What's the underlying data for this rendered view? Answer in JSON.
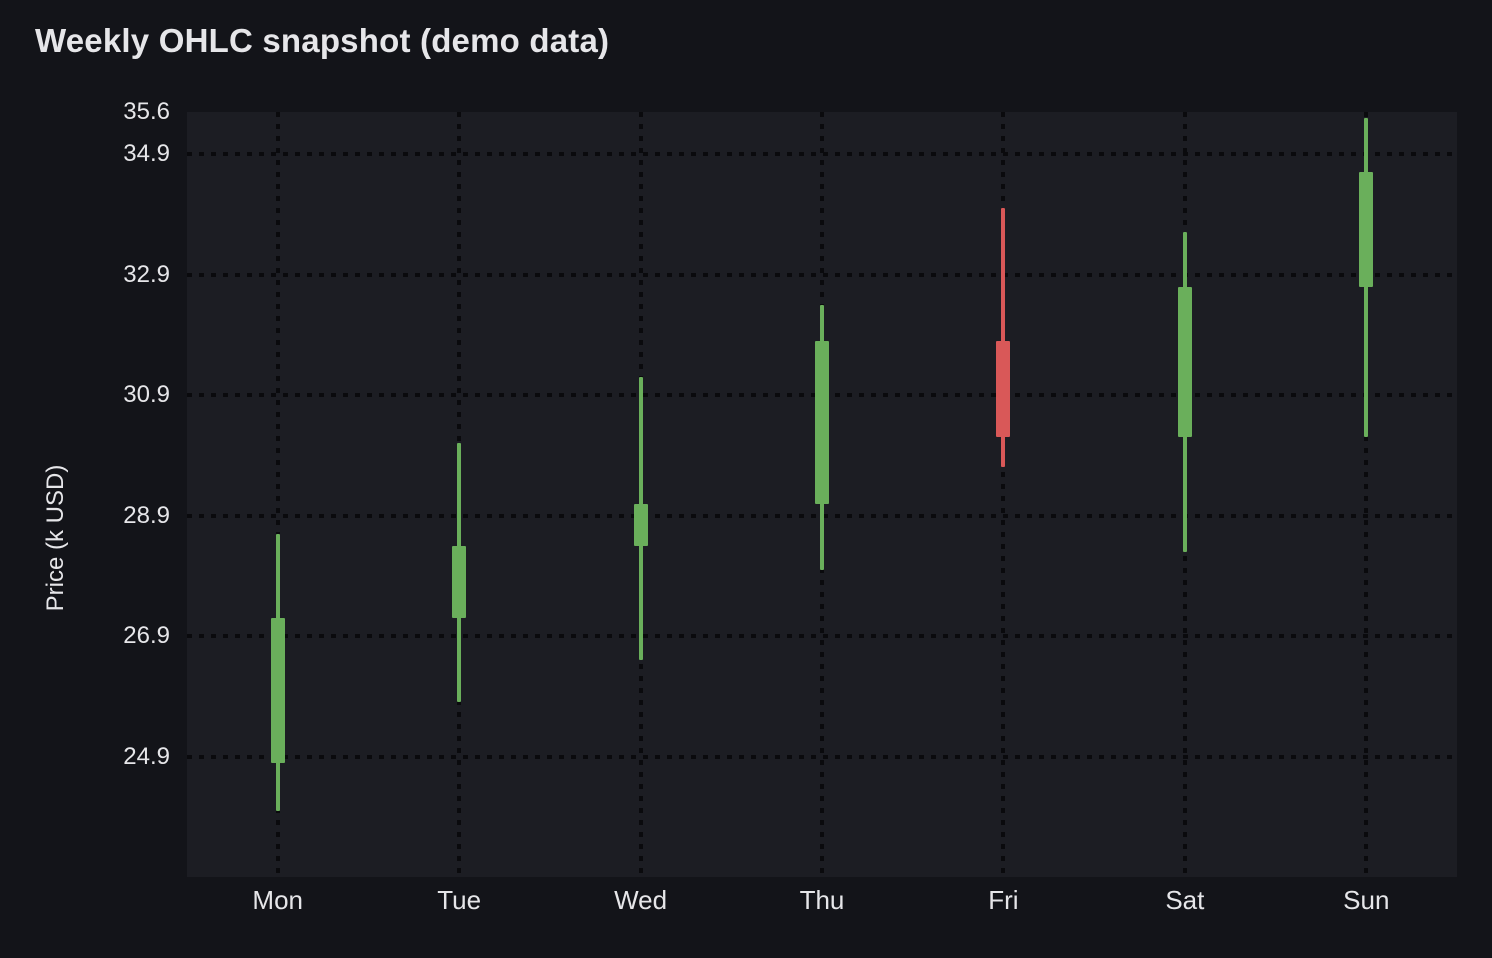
{
  "title": "Weekly OHLC snapshot (demo data)",
  "y_axis": {
    "label": "Price (k USD)",
    "ticks": [
      {
        "label": "35.6",
        "value": 35.6,
        "gridline": false
      },
      {
        "label": "34.9",
        "value": 34.9,
        "gridline": true
      },
      {
        "label": "32.9",
        "value": 32.9,
        "gridline": true
      },
      {
        "label": "30.9",
        "value": 30.9,
        "gridline": true
      },
      {
        "label": "28.9",
        "value": 28.9,
        "gridline": true
      },
      {
        "label": "26.9",
        "value": 26.9,
        "gridline": true
      },
      {
        "label": "24.9",
        "value": 24.9,
        "gridline": true
      }
    ]
  },
  "x_axis": {
    "labels": [
      "Mon",
      "Tue",
      "Wed",
      "Thu",
      "Fri",
      "Sat",
      "Sun"
    ]
  },
  "colors": {
    "up": "#6aaf5b",
    "down": "#d95858",
    "background": "#131419",
    "plot_background": "#1c1d23",
    "gridline": "#0a0a0d",
    "text": "#e6e6e9"
  },
  "chart_data": {
    "type": "candlestick",
    "title": "Weekly OHLC snapshot (demo data)",
    "xlabel": "",
    "ylabel": "Price (k USD)",
    "categories": [
      "Mon",
      "Tue",
      "Wed",
      "Thu",
      "Fri",
      "Sat",
      "Sun"
    ],
    "series": [
      {
        "name": "OHLC",
        "points": [
          {
            "day": "Mon",
            "open": 24.8,
            "high": 28.6,
            "low": 24.0,
            "close": 27.2,
            "direction": "up"
          },
          {
            "day": "Tue",
            "open": 27.2,
            "high": 30.1,
            "low": 25.8,
            "close": 28.4,
            "direction": "up"
          },
          {
            "day": "Wed",
            "open": 28.4,
            "high": 31.2,
            "low": 26.5,
            "close": 29.1,
            "direction": "up"
          },
          {
            "day": "Thu",
            "open": 29.1,
            "high": 32.4,
            "low": 28.0,
            "close": 31.8,
            "direction": "up"
          },
          {
            "day": "Fri",
            "open": 31.8,
            "high": 34.0,
            "low": 29.7,
            "close": 30.2,
            "direction": "down"
          },
          {
            "day": "Sat",
            "open": 30.2,
            "high": 33.6,
            "low": 28.3,
            "close": 32.7,
            "direction": "up"
          },
          {
            "day": "Sun",
            "open": 32.7,
            "high": 35.5,
            "low": 30.2,
            "close": 34.6,
            "direction": "up"
          }
        ]
      }
    ],
    "ylim": [
      22.9,
      35.6
    ],
    "y_ticks": [
      35.6,
      34.9,
      32.9,
      30.9,
      28.9,
      26.9,
      24.9
    ],
    "grid": true,
    "legend": "none",
    "up_color": "#6aaf5b",
    "down_color": "#d95858"
  }
}
